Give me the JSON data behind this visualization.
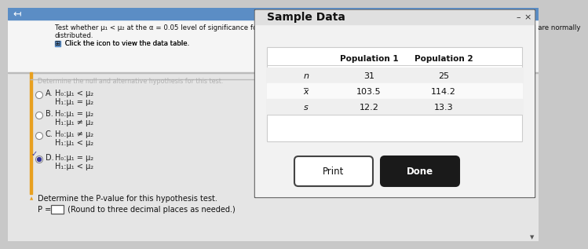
{
  "bg_outer": "#c8c8c8",
  "bg_top": "#f0f0f0",
  "bg_content": "#e8e8e8",
  "top_bar_color": "#5b8dc5",
  "left_accent_color": "#e8a020",
  "top_text_line1": "Test whether μ₁ < μ₂ at the α = 0.05 level of significance for the sample data shown in the accompanying table. Assume that the populations are normally",
  "top_text_line2": "distributed.",
  "top_text_line3": "⊞  Click the icon to view the data table.",
  "left_arrow": "↤",
  "blurred_text": "Determine the null and alternative hypothesis for this test.",
  "options": [
    {
      "label": "A.",
      "h0": "H₀:μ₁ < μ₂",
      "h1": "H₁:μ₁ = μ₂",
      "selected": false
    },
    {
      "label": "B.",
      "h0": "H₀:μ₁ = μ₂",
      "h1": "H₁:μ₁ ≠ μ₂",
      "selected": false
    },
    {
      "label": "C.",
      "h0": "H₀:μ₁ ≠ μ₂",
      "h1": "H₁:μ₁ < μ₂",
      "selected": false
    },
    {
      "label": "D.",
      "h0": "H₀:μ₁ = μ₂",
      "h1": "H₁:μ₁ < μ₂",
      "selected": true
    }
  ],
  "bottom_text1": "Determine the P-value for this hypothesis test.",
  "bottom_text2": "(Round to three decimal places as needed.)",
  "popup_title": "Sample Data",
  "popup_bg": "#f2f2f2",
  "popup_border": "#777777",
  "table_headers": [
    "",
    "Population 1",
    "Population 2"
  ],
  "table_rows": [
    [
      "n",
      "31",
      "25"
    ],
    [
      "x̅",
      "103.5",
      "114.2"
    ],
    [
      "s",
      "12.2",
      "13.3"
    ]
  ],
  "print_btn_text": "Print",
  "done_btn_text": "Done"
}
